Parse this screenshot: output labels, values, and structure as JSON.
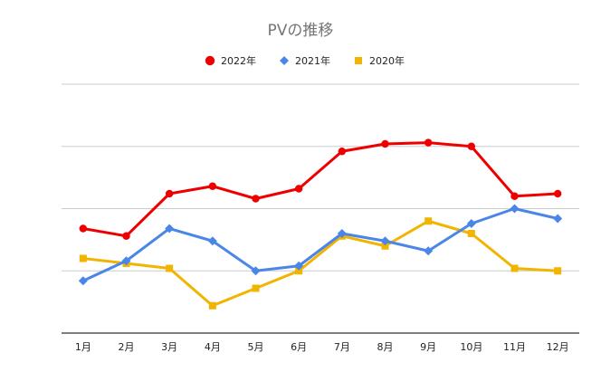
{
  "chart_data": {
    "type": "line",
    "title": "PVの推移",
    "xlabel": "",
    "ylabel": "",
    "categories": [
      "1月",
      "2月",
      "3月",
      "4月",
      "5月",
      "6月",
      "7月",
      "8月",
      "9月",
      "10月",
      "11月",
      "12月"
    ],
    "ylim": [
      0,
      100
    ],
    "grid": true,
    "legend_position": "top",
    "series": [
      {
        "name": "2022年",
        "color": "#ee0000",
        "marker": "circle",
        "values": [
          42,
          39,
          56,
          59,
          54,
          58,
          73,
          76,
          76.5,
          75,
          55,
          56
        ]
      },
      {
        "name": "2021年",
        "color": "#4a86e8",
        "marker": "diamond",
        "values": [
          21,
          29,
          42,
          37,
          25,
          27,
          40,
          37,
          33,
          44,
          50,
          46
        ]
      },
      {
        "name": "2020年",
        "color": "#f1b400",
        "marker": "square",
        "values": [
          30,
          28,
          26,
          11,
          18,
          25,
          39,
          35,
          45,
          40,
          26,
          25
        ]
      }
    ]
  }
}
